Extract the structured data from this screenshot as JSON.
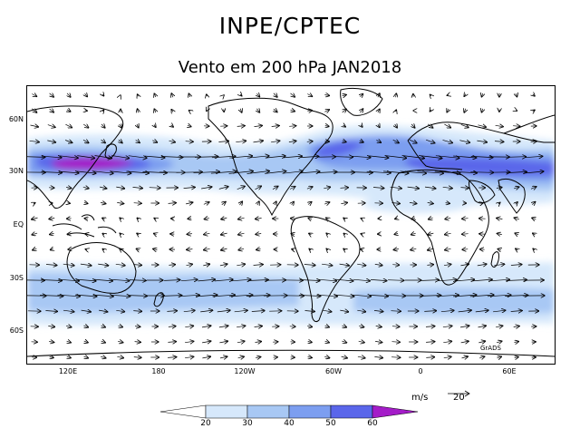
{
  "title": "INPE/CPTEC",
  "subtitle": "Vento em 200 hPa JAN2018",
  "map": {
    "latitude_labels": [
      "60N",
      "30N",
      "EQ",
      "30S",
      "60S"
    ],
    "longitude_labels": [
      "120E",
      "180",
      "120W",
      "60W",
      "0",
      "60E"
    ],
    "watermark": "GrADS"
  },
  "colorbar": {
    "units": "m/s",
    "ticks": [
      "20",
      "30",
      "40",
      "50",
      "60"
    ],
    "colors": [
      "#ffffff",
      "#d6e8fb",
      "#a8c8f4",
      "#7c9ef0",
      "#5a66ea",
      "#a41cc8"
    ]
  },
  "reference_vector": {
    "label": "20"
  },
  "jets": [
    {
      "name": "north-pacific-jet-core",
      "color": "#a41cc8"
    },
    {
      "name": "jet-band",
      "color": "#5a66ea"
    }
  ]
}
